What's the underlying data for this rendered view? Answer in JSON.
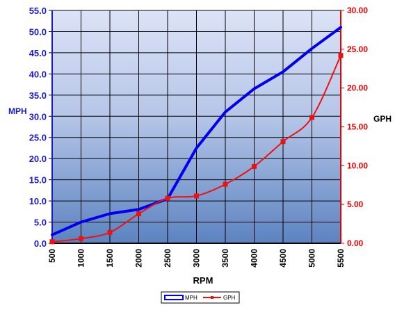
{
  "chart_data": {
    "type": "line",
    "x": [
      500,
      1000,
      1500,
      2000,
      2500,
      3000,
      3500,
      4000,
      4500,
      5000,
      5500
    ],
    "xlabel": "RPM",
    "ylabel": "MPH",
    "y2label": "GPH",
    "ylim": [
      0,
      55
    ],
    "y2lim": [
      0,
      30
    ],
    "x_ticks": [
      "500",
      "1000",
      "1500",
      "2000",
      "2500",
      "3000",
      "3500",
      "4000",
      "4500",
      "5000",
      "5500"
    ],
    "y_ticks": [
      "0.0",
      "5.0",
      "10.0",
      "15.0",
      "20.0",
      "25.0",
      "30.0",
      "35.0",
      "40.0",
      "45.0",
      "50.0",
      "55.0"
    ],
    "y2_ticks": [
      "0.00",
      "5.00",
      "10.00",
      "15.00",
      "20.00",
      "25.00",
      "30.00"
    ],
    "grid": true,
    "legend_position": "bottom-center",
    "series": [
      {
        "name": "MPH",
        "axis": "left",
        "color": "#0000ee",
        "marker": "none",
        "values": [
          2.0,
          5.0,
          7.0,
          8.0,
          10.5,
          22.5,
          31.0,
          36.5,
          40.5,
          46.0,
          51.0
        ]
      },
      {
        "name": "GPH",
        "axis": "right",
        "color": "#ee1111",
        "marker": "square",
        "values": [
          0.2,
          0.6,
          1.4,
          3.8,
          5.8,
          6.1,
          7.6,
          9.9,
          13.1,
          16.2,
          24.2
        ]
      }
    ],
    "colors": {
      "left_axis": "#1a1acc",
      "right_axis": "#ee0000",
      "bg_top": "#dce3f7",
      "bg_bottom": "#5f86c2"
    }
  }
}
